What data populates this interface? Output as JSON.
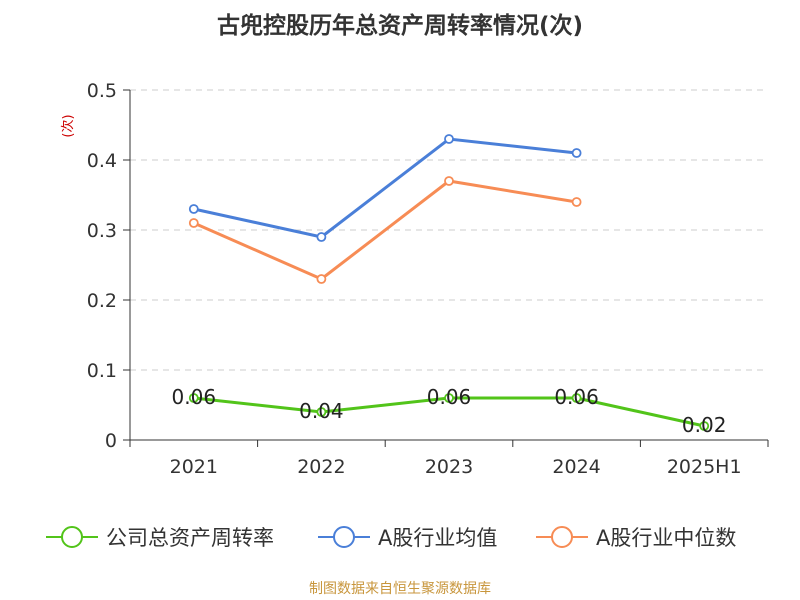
{
  "chart_data": {
    "type": "line",
    "title": "古兜控股历年总资产周转率情况(次)",
    "ylabel": "(次)",
    "categories": [
      "2021",
      "2022",
      "2023",
      "2024",
      "2025H1"
    ],
    "ylim": [
      0,
      0.5
    ],
    "yticks": [
      "0",
      "0.1",
      "0.2",
      "0.3",
      "0.4",
      "0.5"
    ],
    "grid": true,
    "legend_position": "bottom",
    "series": [
      {
        "name": "公司总资产周转率",
        "color": "#52c41a",
        "values": [
          0.06,
          0.04,
          0.06,
          0.06,
          0.02
        ],
        "labels": [
          "0.06",
          "0.04",
          "0.06",
          "0.06",
          "0.02"
        ]
      },
      {
        "name": "A股行业均值",
        "color": "#4a7fd8",
        "values": [
          0.33,
          0.29,
          0.43,
          0.41,
          null
        ]
      },
      {
        "name": "A股行业中位数",
        "color": "#f78c55",
        "values": [
          0.31,
          0.23,
          0.37,
          0.34,
          null
        ]
      }
    ],
    "source": "制图数据来自恒生聚源数据库"
  }
}
